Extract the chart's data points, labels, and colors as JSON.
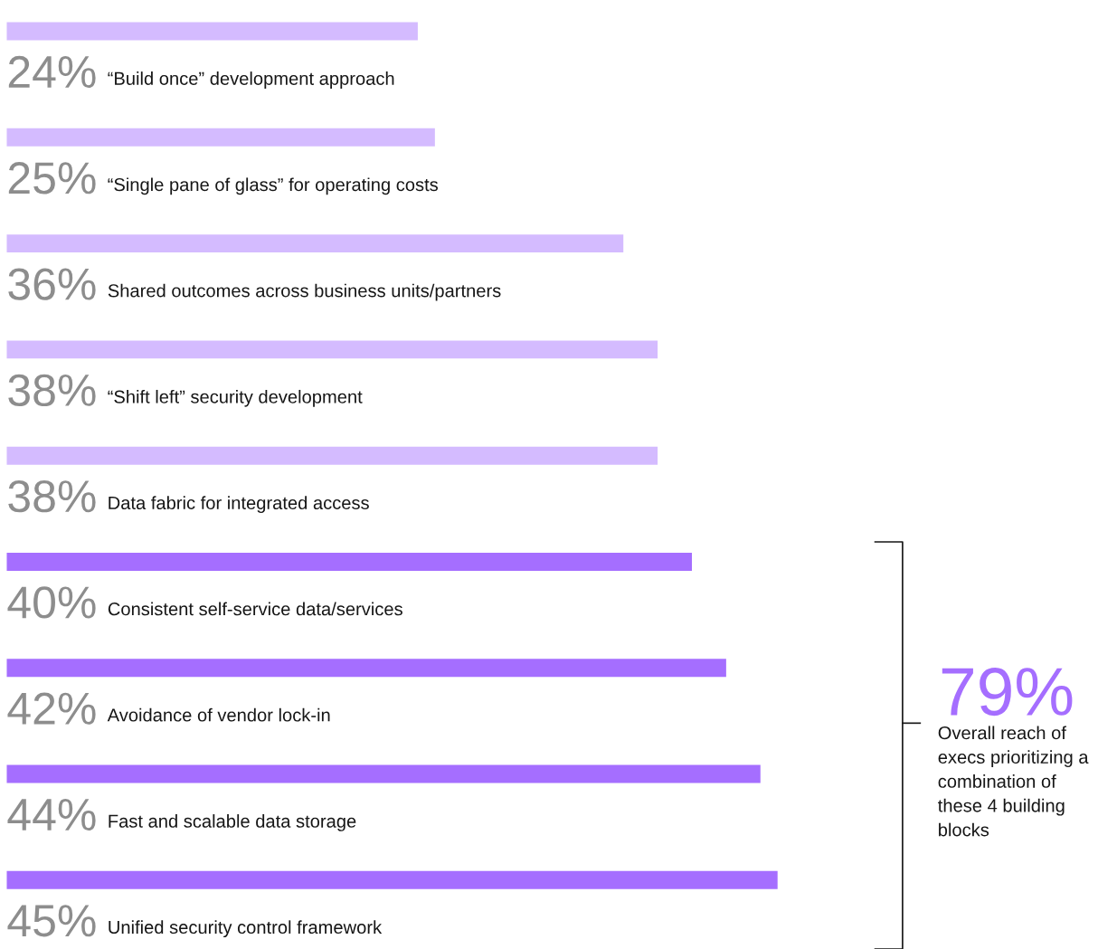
{
  "chart_data": {
    "type": "bar",
    "orientation": "horizontal",
    "data_labels": true,
    "categories": [
      "“Build once” development approach",
      "“Single pane of glass” for operating costs",
      "Shared outcomes across business units/partners",
      "“Shift left” security development",
      "Data fabric for integrated access",
      "Consistent self-service data/services",
      "Avoidance of vendor lock-in",
      "Fast and scalable data storage",
      "Unified security control framework"
    ],
    "values": [
      24,
      25,
      36,
      38,
      38,
      40,
      42,
      44,
      45
    ],
    "value_labels": [
      "24%",
      "25%",
      "36%",
      "38%",
      "38%",
      "40%",
      "42%",
      "44%",
      "45%"
    ],
    "colors": [
      "#d4bbff",
      "#d4bbff",
      "#d4bbff",
      "#d4bbff",
      "#d4bbff",
      "#a56eff",
      "#a56eff",
      "#a56eff",
      "#a56eff"
    ],
    "annotations": [
      "79%",
      "Overall reach of execs prioritizing a combination of these 4 building blocks"
    ]
  }
}
